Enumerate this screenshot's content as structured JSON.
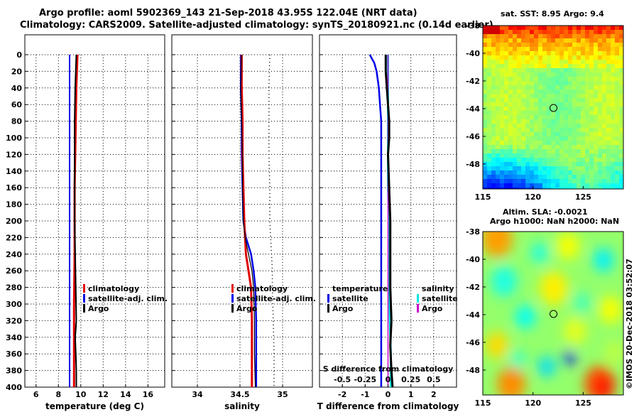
{
  "header": {
    "line1": "Argo profile: aoml 5902369_143 21-Sep-2018 43.95S 122.04E (NRT data)",
    "line2": "Climatology: CARS2009. Satellite-adjusted climatology: synTS_20180921.nc (0.14d earlier)"
  },
  "credit": "©IMOS 20-Dec-2018 03:52:07",
  "colors": {
    "climatology": "#e00000",
    "satellite": "#0000e6",
    "argo": "#000000",
    "s_satellite": "#00e5e5",
    "s_argo": "#cc00cc"
  },
  "legend": {
    "climatology": "climatology",
    "satellite_adj": "satellite-adj. clim.",
    "argo": "Argo",
    "temperature": "temperature",
    "salinity": "salinity",
    "satellite": "satellite"
  },
  "maps": {
    "sst_title": "sat. SST: 8.95 Argo: 9.4",
    "sla_title_1": "Altim. SLA: -0.0021",
    "sla_title_2": "Argo h1000: NaN h2000: NaN",
    "lon_ticks": [
      115,
      120,
      125
    ],
    "lat_ticks": [
      -38,
      -40,
      -42,
      -44,
      -46,
      -48
    ],
    "lon_range": [
      115,
      129
    ],
    "lat_range": [
      -49.8,
      -38
    ],
    "argo_position": {
      "lon": 122.04,
      "lat": -43.95
    }
  },
  "chart_data": [
    {
      "type": "line",
      "title": "",
      "xlabel": "temperature (deg C)",
      "ylabel": "",
      "xlim": [
        5,
        17.5
      ],
      "ylim": [
        400,
        0
      ],
      "xticks": [
        6,
        8,
        10,
        12,
        14,
        16
      ],
      "yticks": [
        0,
        20,
        40,
        60,
        80,
        100,
        120,
        140,
        160,
        180,
        200,
        220,
        240,
        260,
        280,
        300,
        320,
        340,
        360,
        380,
        400
      ],
      "series": [
        {
          "name": "climatology",
          "x": [
            9.7,
            9.65,
            9.6,
            9.55,
            9.5,
            9.45,
            9.45,
            9.45,
            9.4,
            9.4,
            9.4
          ],
          "y": [
            0,
            20,
            40,
            80,
            120,
            160,
            200,
            240,
            300,
            360,
            400
          ]
        },
        {
          "name": "satellite-adj. clim.",
          "x": [
            9.0,
            9.0,
            9.0,
            9.0,
            9.0,
            9.0,
            9.0,
            9.0,
            9.0,
            9.0,
            9.0
          ],
          "y": [
            0,
            20,
            40,
            80,
            120,
            160,
            200,
            240,
            300,
            360,
            400
          ]
        },
        {
          "name": "Argo",
          "x": [
            9.6,
            9.55,
            9.5,
            9.45,
            9.45,
            9.45,
            9.45,
            9.5,
            9.55,
            9.6,
            9.5,
            9.55,
            9.6,
            9.6
          ],
          "y": [
            0,
            20,
            40,
            80,
            120,
            160,
            200,
            240,
            280,
            320,
            340,
            360,
            380,
            400
          ]
        }
      ]
    },
    {
      "type": "line",
      "title": "",
      "xlabel": "salinity",
      "ylabel": "",
      "xlim": [
        33.7,
        35.35
      ],
      "ylim": [
        400,
        0
      ],
      "xticks": [
        34,
        34.5,
        35
      ],
      "series": [
        {
          "name": "climatology",
          "x": [
            34.52,
            34.52,
            34.53,
            34.53,
            34.54,
            34.55,
            34.56,
            34.57,
            34.6,
            34.63,
            34.64,
            34.64,
            34.64
          ],
          "y": [
            0,
            40,
            80,
            120,
            160,
            200,
            220,
            240,
            260,
            280,
            320,
            360,
            400
          ]
        },
        {
          "name": "satellite-adj. clim.",
          "x": [
            34.51,
            34.51,
            34.52,
            34.52,
            34.53,
            34.54,
            34.57,
            34.63,
            34.66,
            34.68,
            34.69,
            34.69,
            34.69
          ],
          "y": [
            0,
            40,
            80,
            120,
            160,
            200,
            220,
            240,
            260,
            280,
            320,
            360,
            400
          ]
        },
        {
          "name": "Argo",
          "x": [
            34.52,
            34.51,
            34.52,
            34.53,
            34.53,
            34.54,
            34.56,
            34.6,
            34.64,
            34.66,
            34.67,
            34.67,
            34.68
          ],
          "y": [
            0,
            40,
            80,
            120,
            160,
            200,
            220,
            240,
            260,
            280,
            320,
            360,
            400
          ]
        }
      ]
    },
    {
      "type": "line",
      "title": "",
      "xlabel": "T difference from climatology",
      "ylabel": "",
      "xlim": [
        -3,
        3
      ],
      "ylim": [
        400,
        0
      ],
      "xticks": [
        -2,
        -1,
        0,
        1,
        2
      ],
      "top_axis_label": "S difference from climatology",
      "top_xticks": [
        -0.5,
        -0.25,
        0,
        0.25,
        0.5
      ],
      "top_xlim": [
        -0.75,
        0.75
      ],
      "series": [
        {
          "name": "temperature satellite",
          "x": [
            -0.8,
            -0.6,
            -0.5,
            -0.4,
            -0.35,
            -0.3,
            -0.3,
            -0.3,
            -0.3,
            -0.3,
            -0.3,
            -0.3
          ],
          "y": [
            0,
            10,
            20,
            40,
            60,
            80,
            120,
            160,
            200,
            240,
            320,
            400
          ]
        },
        {
          "name": "temperature Argo",
          "x": [
            -0.1,
            -0.1,
            -0.05,
            0.0,
            0.05,
            0.05,
            0.0,
            0.05,
            0.1,
            0.1,
            0.1,
            0.15,
            0.1,
            0.15,
            0.2
          ],
          "y": [
            0,
            20,
            40,
            60,
            80,
            100,
            120,
            160,
            200,
            240,
            280,
            320,
            350,
            380,
            400
          ]
        },
        {
          "name": "salinity satellite",
          "x": [
            0.0,
            0.0,
            0.0,
            0.0,
            0.01,
            0.01,
            0.01,
            0.02,
            0.03,
            0.03
          ],
          "y": [
            0,
            20,
            80,
            160,
            200,
            240,
            280,
            320,
            360,
            400
          ]
        },
        {
          "name": "salinity Argo",
          "x": [
            0.0,
            0.0,
            0.0,
            0.0,
            0.0,
            0.0,
            0.0,
            0.0,
            0.0,
            0.0
          ],
          "y": [
            0,
            20,
            80,
            160,
            200,
            240,
            280,
            320,
            360,
            400
          ]
        }
      ]
    }
  ]
}
